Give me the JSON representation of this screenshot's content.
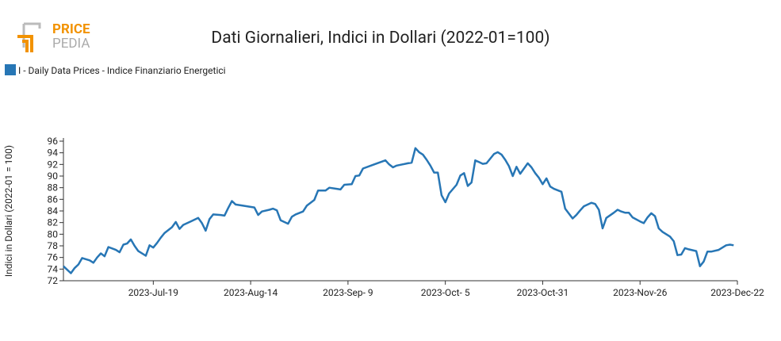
{
  "logo": {
    "top": "PRICE",
    "bottom": "PEDIA"
  },
  "chart_data": {
    "type": "line",
    "title": "Dati Giornalieri, Indici in Dollari (2022-01=100)",
    "y_label": "Indici in Dollari (2022-01 = 100)",
    "x": [
      "2023-06-25",
      "2023-06-27",
      "2023-06-28",
      "2023-06-29",
      "2023-06-30",
      "2023-07-02",
      "2023-07-03",
      "2023-07-04",
      "2023-07-05",
      "2023-07-06",
      "2023-07-07",
      "2023-07-09",
      "2023-07-10",
      "2023-07-11",
      "2023-07-12",
      "2023-07-13",
      "2023-07-14",
      "2023-07-15",
      "2023-07-17",
      "2023-07-18",
      "2023-07-19",
      "2023-07-20",
      "2023-07-21",
      "2023-07-22",
      "2023-07-24",
      "2023-07-25",
      "2023-07-26",
      "2023-07-27",
      "2023-07-29",
      "2023-07-31",
      "2023-08-01",
      "2023-08-02",
      "2023-08-03",
      "2023-08-04",
      "2023-08-06",
      "2023-08-07",
      "2023-08-08",
      "2023-08-09",
      "2023-08-10",
      "2023-08-12",
      "2023-08-15",
      "2023-08-16",
      "2023-08-17",
      "2023-08-19",
      "2023-08-20",
      "2023-08-21",
      "2023-08-22",
      "2023-08-24",
      "2023-08-25",
      "2023-08-26",
      "2023-08-28",
      "2023-08-29",
      "2023-08-31",
      "2023-09-01",
      "2023-09-03",
      "2023-09-04",
      "2023-09-06",
      "2023-09-07",
      "2023-09-08",
      "2023-09-10",
      "2023-09-11",
      "2023-09-12",
      "2023-09-13",
      "2023-09-16",
      "2023-09-19",
      "2023-09-20",
      "2023-09-21",
      "2023-09-22",
      "2023-09-25",
      "2023-09-26",
      "2023-09-27",
      "2023-09-28",
      "2023-09-29",
      "2023-09-30",
      "2023-10-01",
      "2023-10-02",
      "2023-10-03",
      "2023-10-04",
      "2023-10-05",
      "2023-10-06",
      "2023-10-08",
      "2023-10-09",
      "2023-10-10",
      "2023-10-11",
      "2023-10-12",
      "2023-10-13",
      "2023-10-14",
      "2023-10-15",
      "2023-10-16",
      "2023-10-18",
      "2023-10-19",
      "2023-10-20",
      "2023-10-21",
      "2023-10-22",
      "2023-10-23",
      "2023-10-24",
      "2023-10-25",
      "2023-10-27",
      "2023-10-28",
      "2023-10-29",
      "2023-10-30",
      "2023-10-31",
      "2023-11-01",
      "2023-11-02",
      "2023-11-03",
      "2023-11-05",
      "2023-11-06",
      "2023-11-08",
      "2023-11-09",
      "2023-11-10",
      "2023-11-11",
      "2023-11-13",
      "2023-11-14",
      "2023-11-15",
      "2023-11-16",
      "2023-11-17",
      "2023-11-19",
      "2023-11-20",
      "2023-11-21",
      "2023-11-22",
      "2023-11-23",
      "2023-11-24",
      "2023-11-26",
      "2023-11-27",
      "2023-11-28",
      "2023-11-29",
      "2023-11-30",
      "2023-12-01",
      "2023-12-02",
      "2023-12-04",
      "2023-12-05",
      "2023-12-06",
      "2023-12-07",
      "2023-12-08",
      "2023-12-09",
      "2023-12-11",
      "2023-12-12",
      "2023-12-13",
      "2023-12-14",
      "2023-12-15",
      "2023-12-17",
      "2023-12-19",
      "2023-12-20",
      "2023-12-21"
    ],
    "series": [
      {
        "name": "I - Daily Data Prices - Indice Finanziario Energetici",
        "color": "#2776b5",
        "values": [
          74.5,
          73.3,
          74.2,
          74.8,
          75.9,
          75.5,
          75.1,
          76.0,
          76.7,
          76.2,
          77.8,
          77.3,
          76.9,
          78.2,
          78.4,
          79.1,
          78.0,
          77.1,
          76.3,
          78.1,
          77.7,
          78.5,
          79.4,
          80.2,
          81.2,
          82.1,
          80.9,
          81.6,
          82.2,
          82.8,
          81.9,
          80.6,
          82.6,
          83.4,
          83.3,
          83.2,
          84.5,
          85.7,
          85.1,
          84.9,
          84.6,
          83.3,
          83.9,
          84.2,
          84.4,
          84.1,
          82.4,
          81.8,
          83.0,
          83.4,
          83.9,
          84.9,
          85.9,
          87.5,
          87.5,
          88.0,
          87.8,
          87.7,
          88.5,
          88.6,
          90.0,
          90.1,
          91.3,
          92.0,
          92.7,
          92.0,
          91.5,
          91.8,
          92.2,
          92.3,
          94.8,
          94.1,
          93.7,
          92.8,
          91.8,
          90.6,
          90.6,
          86.7,
          85.5,
          87.0,
          88.5,
          90.1,
          90.5,
          88.3,
          88.9,
          92.7,
          92.4,
          92.1,
          92.2,
          93.8,
          94.1,
          93.7,
          92.8,
          91.7,
          90.0,
          91.6,
          90.4,
          92.2,
          91.5,
          90.5,
          89.7,
          88.6,
          89.6,
          88.2,
          87.8,
          87.3,
          84.4,
          82.7,
          83.3,
          84.1,
          84.8,
          85.4,
          85.2,
          84.2,
          81.0,
          82.8,
          83.7,
          84.2,
          83.9,
          83.7,
          83.7,
          82.9,
          82.2,
          81.9,
          82.9,
          83.6,
          83.1,
          81.0,
          80.4,
          79.6,
          78.8,
          76.4,
          76.5,
          77.6,
          77.4,
          77.1,
          74.5,
          75.3,
          77.0,
          77.0,
          77.3,
          78.1,
          78.2,
          78.1
        ]
      }
    ],
    "xlim": [
      "2023-06-25",
      "2023-12-22"
    ],
    "xticks": [
      {
        "value": "2023-07-19",
        "label": "2023-Jul-19"
      },
      {
        "value": "2023-08-14",
        "label": "2023-Aug-14"
      },
      {
        "value": "2023-09-09",
        "label": "2023-Sep- 9"
      },
      {
        "value": "2023-10-05",
        "label": "2023-Oct- 5"
      },
      {
        "value": "2023-10-31",
        "label": "2023-Oct-31"
      },
      {
        "value": "2023-11-26",
        "label": "2023-Nov-26"
      },
      {
        "value": "2023-12-22",
        "label": "2023-Dec-22"
      }
    ],
    "ylim": [
      72,
      96
    ],
    "yticks": [
      72,
      74,
      76,
      78,
      80,
      82,
      84,
      86,
      88,
      90,
      92,
      94,
      96
    ],
    "legend": "top-left"
  }
}
